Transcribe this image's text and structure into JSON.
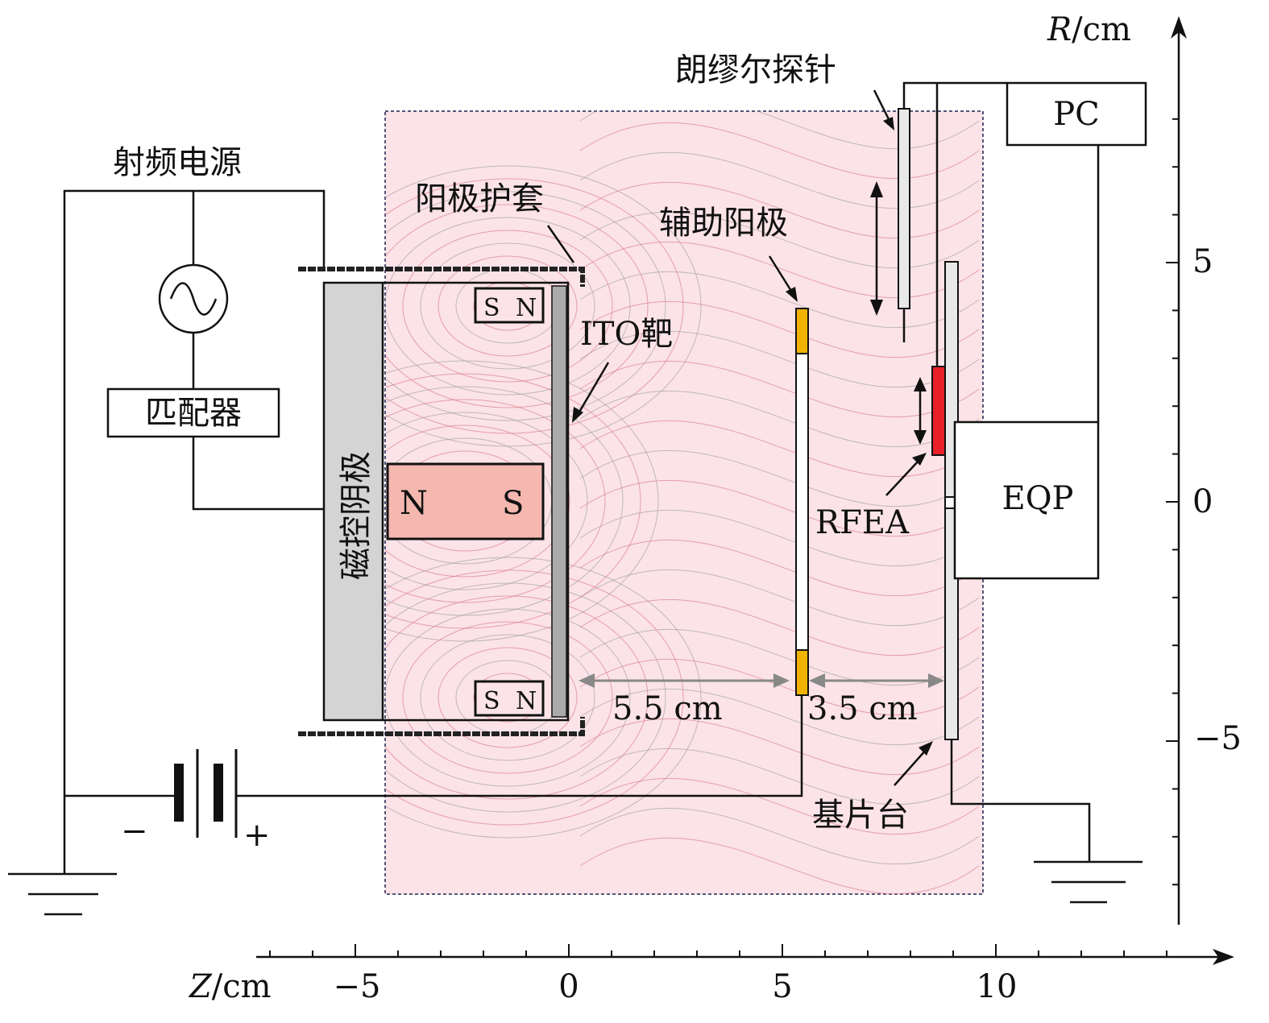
{
  "labels": {
    "rf_source": "射频电源",
    "matcher": "匹配器",
    "cathode": "磁控阴极",
    "anode_shield": "阳极护套",
    "ito_target": "ITO靶",
    "aux_anode": "辅助阳极",
    "langmuir_probe": "朗缪尔探针",
    "pc": "PC",
    "eqp": "EQP",
    "rfea": "RFEA",
    "substrate": "基片台",
    "magnet_n": "N",
    "magnet_s": "S",
    "dist1": "5.5 cm",
    "dist2": "3.5 cm",
    "minus": "−",
    "plus": "+"
  },
  "axes": {
    "z_label_var": "Z",
    "z_label_unit": "/cm",
    "r_label_var": "R",
    "r_label_unit": "/cm",
    "z_ticks": [
      "−5",
      "0",
      "5",
      "10"
    ],
    "r_ticks": [
      "5",
      "0",
      "−5"
    ]
  },
  "colors": {
    "field_bg": "#fbe3e8",
    "field_line": "#d9707f",
    "aux_anode_end": "#f0b400",
    "rfea": "#e8202a",
    "cathode": "#d4d4d4"
  }
}
